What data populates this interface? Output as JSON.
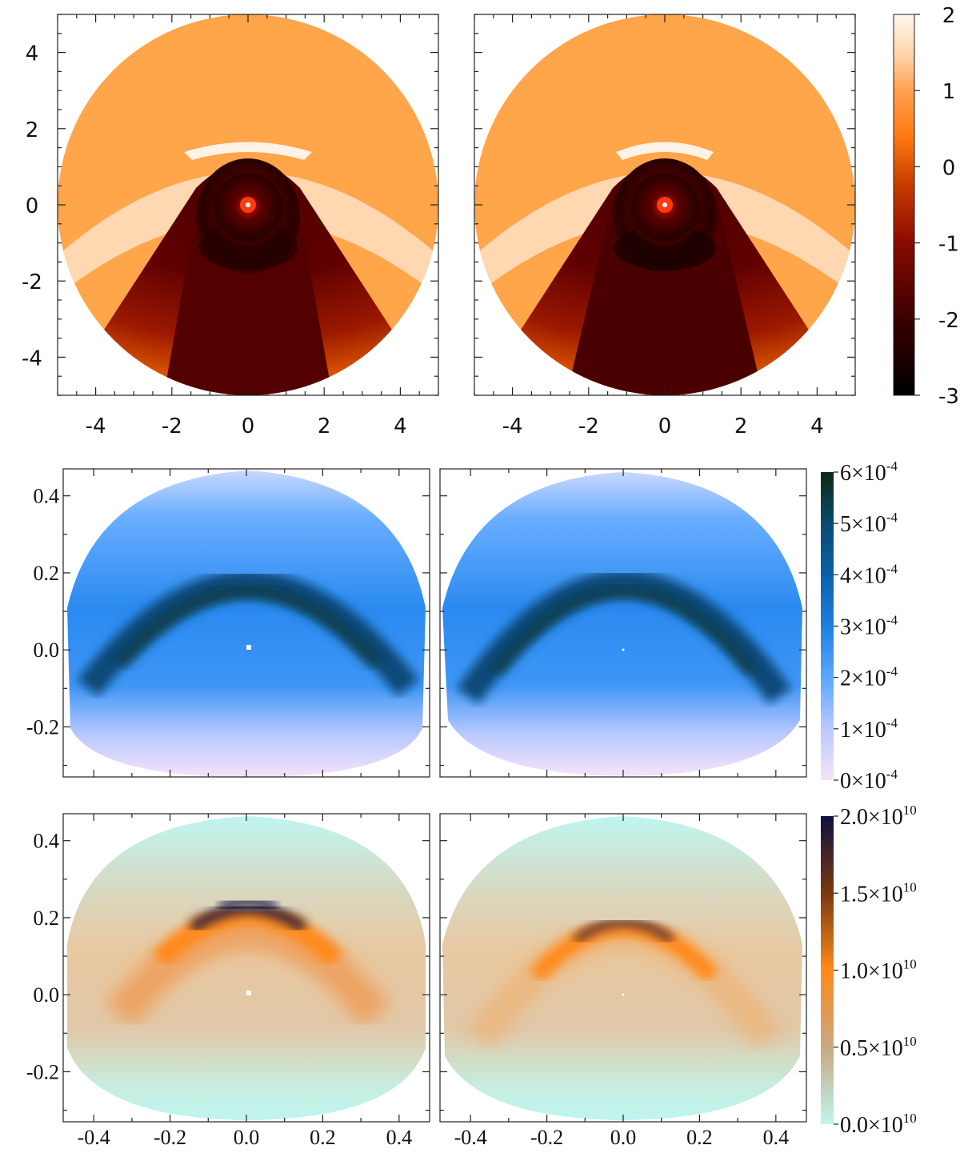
{
  "chart_data": [
    {
      "type": "heatmap",
      "row": "top",
      "panels": [
        "left",
        "right"
      ],
      "xlim": [
        -5,
        5
      ],
      "ylim": [
        -5,
        5
      ],
      "x_ticks": [
        "-4",
        "-2",
        "0",
        "2",
        "4"
      ],
      "y_ticks": [
        "4",
        "2",
        "0",
        "-2",
        "-4"
      ],
      "colorbar": {
        "range": [
          -3,
          2
        ],
        "ticks": [
          "2",
          "1",
          "0",
          "-1",
          "-2",
          "-3"
        ],
        "colors": [
          "#000000",
          "#5a0000",
          "#b02000",
          "#ff7a10",
          "#ffd7b0",
          "#fff8f0"
        ]
      }
    },
    {
      "type": "heatmap",
      "row": "middle",
      "panels": [
        "left",
        "right"
      ],
      "xlim": [
        -0.48,
        0.48
      ],
      "ylim": [
        -0.33,
        0.47
      ],
      "y_ticks": [
        "0.4",
        "0.2",
        "0.0",
        "-0.2"
      ],
      "colorbar": {
        "range": [
          0,
          0.0006
        ],
        "ticks": [
          {
            "mantissa": "6×10",
            "exp": "-4"
          },
          {
            "mantissa": "5×10",
            "exp": "-4"
          },
          {
            "mantissa": "4×10",
            "exp": "-4"
          },
          {
            "mantissa": "3×10",
            "exp": "-4"
          },
          {
            "mantissa": "2×10",
            "exp": "-4"
          },
          {
            "mantissa": "1×10",
            "exp": "-4"
          },
          {
            "mantissa": "0×10",
            "exp": "-4"
          }
        ],
        "colors": [
          "#0c2a14",
          "#0a4a78",
          "#1f7fe0",
          "#5aa8ff",
          "#b8c8ff",
          "#f6e4fa"
        ]
      }
    },
    {
      "type": "heatmap",
      "row": "bottom",
      "panels": [
        "left",
        "right"
      ],
      "xlim": [
        -0.48,
        0.48
      ],
      "ylim": [
        -0.33,
        0.47
      ],
      "x_ticks": [
        "-0.4",
        "-0.2",
        "0.0",
        "0.2",
        "0.4"
      ],
      "y_ticks": [
        "0.4",
        "0.2",
        "0.0",
        "-0.2"
      ],
      "colorbar": {
        "range": [
          0,
          20000000000
        ],
        "ticks": [
          {
            "mantissa": "2.0×10",
            "exp": "10"
          },
          {
            "mantissa": "1.5×10",
            "exp": "10"
          },
          {
            "mantissa": "1.0×10",
            "exp": "10"
          },
          {
            "mantissa": "0.5×10",
            "exp": "10"
          },
          {
            "mantissa": "0.0×10",
            "exp": "10"
          }
        ],
        "colors": [
          "#bff5f0",
          "#c9a880",
          "#ff8a1a",
          "#7a3a10",
          "#0e0e40"
        ]
      }
    }
  ]
}
